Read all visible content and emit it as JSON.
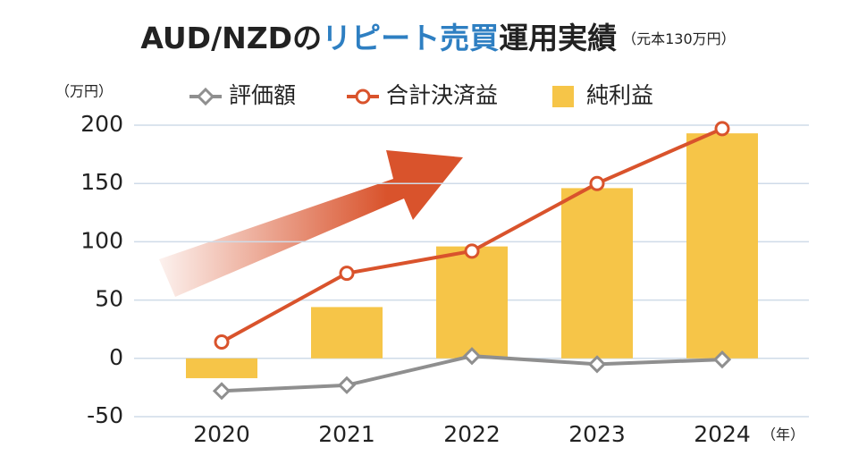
{
  "chart_data": {
    "type": "bar",
    "title": [
      "AUD/NZDの",
      "リピート売買",
      "運用実績"
    ],
    "title_colors": [
      "#222222",
      "#2e7fc2",
      "#222222"
    ],
    "subtitle": "（元本130万円）",
    "y_label": "（万円）",
    "x_label": "（年）",
    "categories": [
      "2020",
      "2021",
      "2022",
      "2023",
      "2024"
    ],
    "series": [
      {
        "name": "評価額",
        "type": "line",
        "marker": "diamond",
        "color": "#8f8f8f",
        "values": [
          -28,
          -23,
          2,
          -5,
          -1
        ]
      },
      {
        "name": "合計決済益",
        "type": "line",
        "marker": "circle",
        "color": "#d9532c",
        "values": [
          14,
          73,
          92,
          150,
          197
        ]
      },
      {
        "name": "純利益",
        "type": "bar",
        "color": "#f6c548",
        "values": [
          -17,
          44,
          96,
          146,
          193
        ]
      }
    ],
    "ylim": [
      -50,
      200
    ],
    "yticks": [
      -50,
      0,
      50,
      100,
      150,
      200
    ],
    "grid": true
  }
}
